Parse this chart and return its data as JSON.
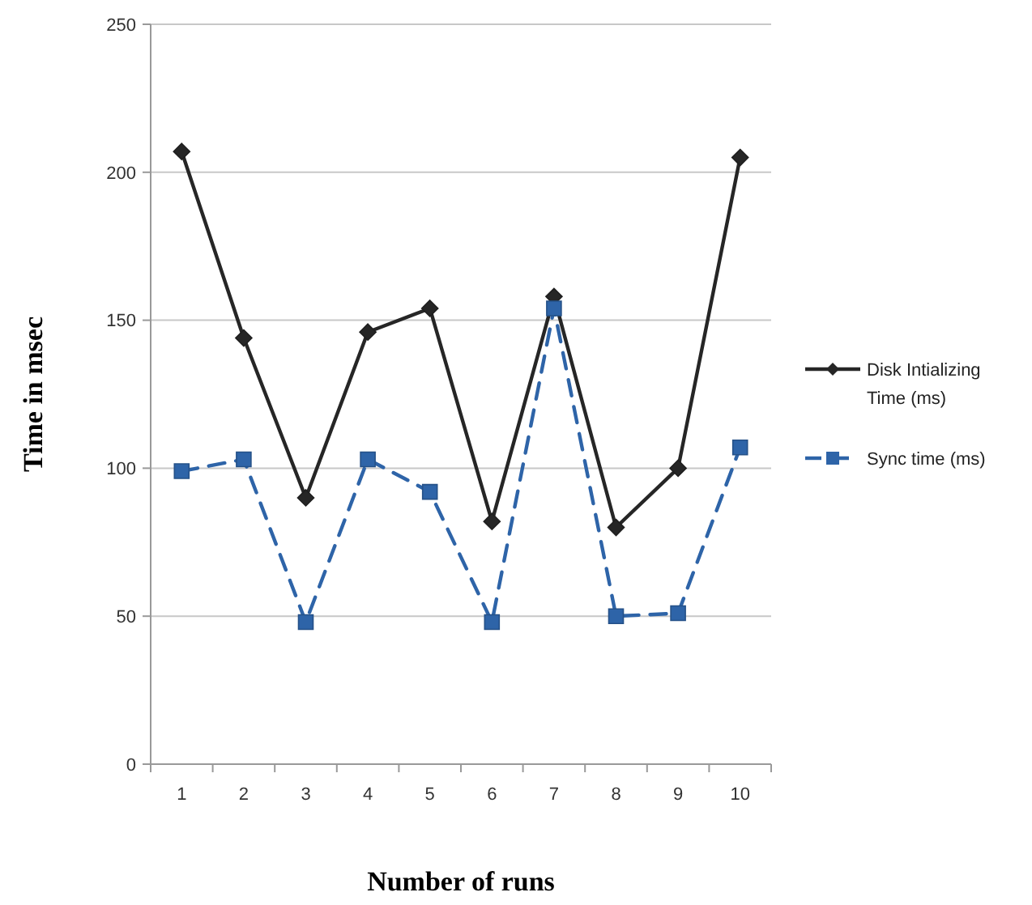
{
  "chart_data": {
    "type": "line",
    "xlabel": "Number of runs",
    "ylabel": "Time in msec",
    "categories": [
      "1",
      "2",
      "3",
      "4",
      "5",
      "6",
      "7",
      "8",
      "9",
      "10"
    ],
    "series": [
      {
        "name": "Disk Intializing Time (ms)",
        "color": "#262626",
        "marker": "diamond",
        "line_style": "solid",
        "values": [
          207,
          144,
          90,
          146,
          154,
          82,
          158,
          80,
          100,
          205
        ]
      },
      {
        "name": "Sync time (ms)",
        "color": "#2e64a8",
        "marker": "square",
        "line_style": "dashed",
        "values": [
          99,
          103,
          48,
          103,
          92,
          48,
          154,
          50,
          51,
          107
        ]
      }
    ],
    "ylim": [
      0,
      250
    ],
    "yticks": [
      0,
      50,
      100,
      150,
      200,
      250
    ],
    "grid": "y",
    "legend": "right"
  }
}
